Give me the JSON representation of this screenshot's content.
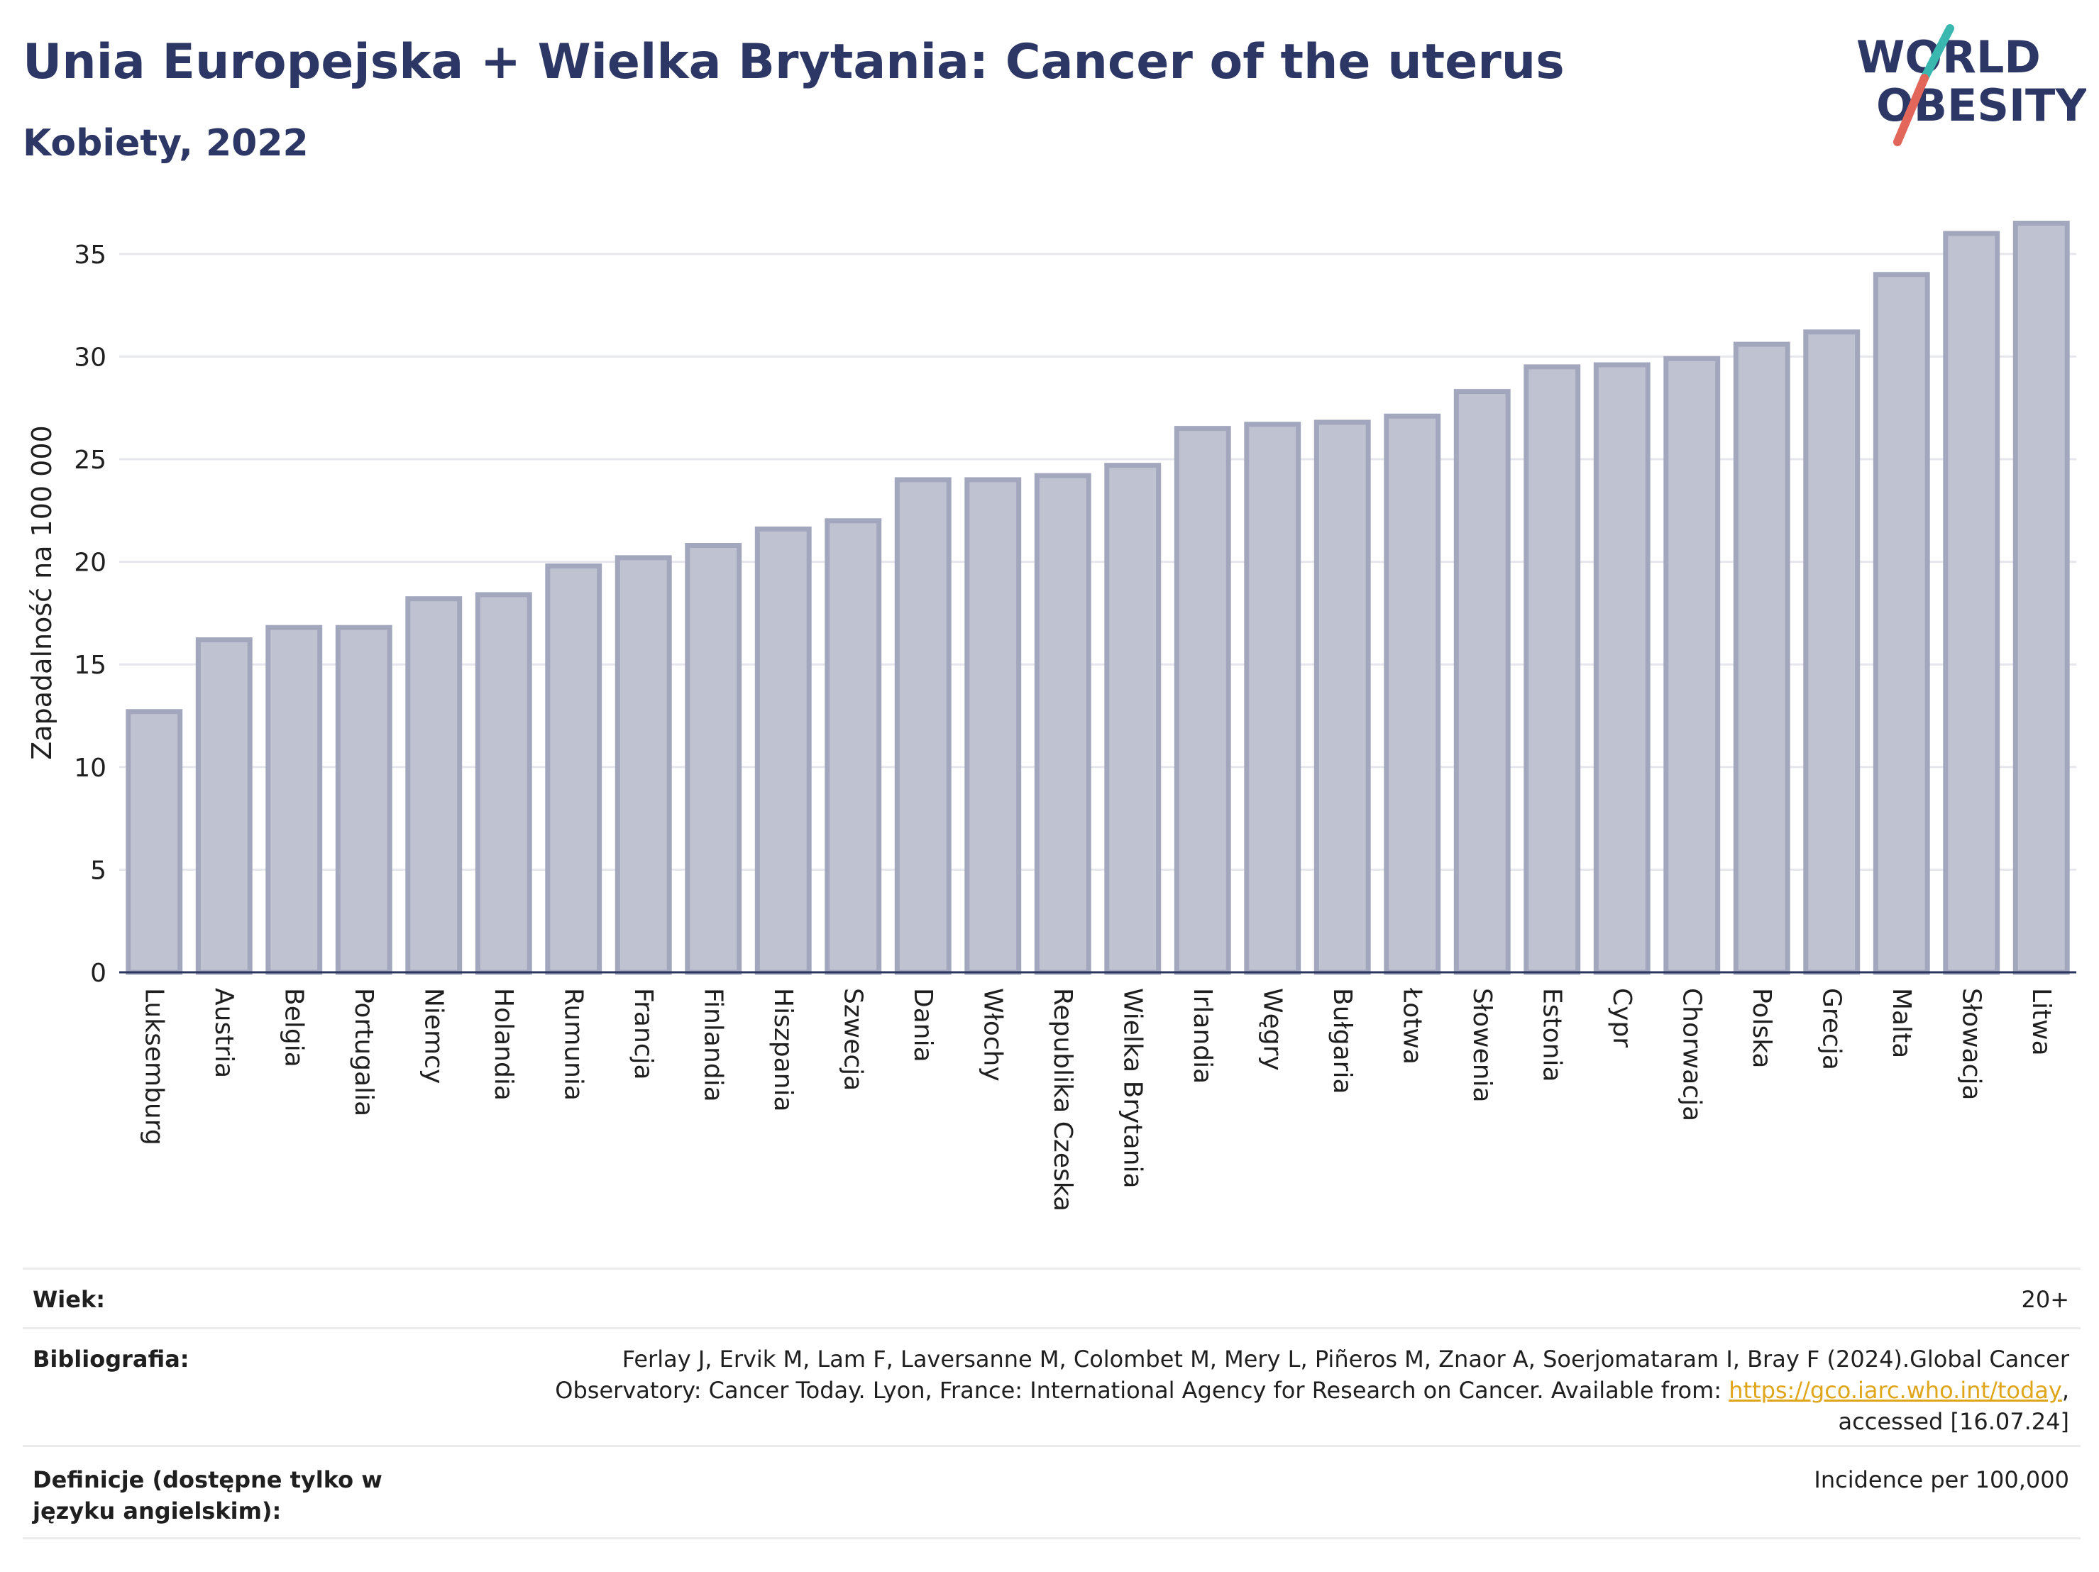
{
  "header": {
    "title": "Unia Europejska + Wielka Brytania: Cancer of the uterus",
    "subtitle": "Kobiety, 2022"
  },
  "logo": {
    "line1": "WORLD",
    "line2": "OBESITY",
    "icon": "world-obesity-logo"
  },
  "chart_data": {
    "type": "bar",
    "ylabel": "Zapadalność na 100 000",
    "ylim": [
      0,
      37
    ],
    "yticks": [
      0,
      5,
      10,
      15,
      20,
      25,
      30,
      35
    ],
    "grid": true,
    "bar_color": "#bfc2d0",
    "bar_edge_color": "#a2a7bd",
    "categories": [
      "Luksemburg",
      "Austria",
      "Belgia",
      "Portugalia",
      "Niemcy",
      "Holandia",
      "Rumunia",
      "Francja",
      "Finlandia",
      "Hiszpania",
      "Szwecja",
      "Dania",
      "Włochy",
      "Republika Czeska",
      "Wielka Brytania",
      "Irlandia",
      "Węgry",
      "Bułgaria",
      "Łotwa",
      "Słowenia",
      "Estonia",
      "Cypr",
      "Chorwacja",
      "Polska",
      "Grecja",
      "Malta",
      "Słowacja",
      "Litwa"
    ],
    "values": [
      12.7,
      16.2,
      16.8,
      16.8,
      18.2,
      18.4,
      19.8,
      20.2,
      20.8,
      21.6,
      22.0,
      24.0,
      24.0,
      24.2,
      24.7,
      26.5,
      26.7,
      26.8,
      27.1,
      28.3,
      29.5,
      29.6,
      29.9,
      30.6,
      31.2,
      34.0,
      36.0,
      36.5
    ]
  },
  "info": {
    "rows": [
      {
        "label": "Wiek:",
        "value": "20+"
      },
      {
        "label": "Bibliografia:",
        "value_pre": "Ferlay J, Ervik M, Lam F, Laversanne M, Colombet M, Mery L, Piñeros M, Znaor A, Soerjomataram I, Bray F (2024).Global Cancer Observatory: Cancer Today. Lyon, France: International Agency for Research on Cancer. Available from: ",
        "link": "https://gco.iarc.who.int/today",
        "value_post": ", accessed [16.07.24]"
      },
      {
        "label": "Definicje (dostępne tylko w języku angielskim):",
        "value": "Incidence per 100,000"
      }
    ]
  }
}
